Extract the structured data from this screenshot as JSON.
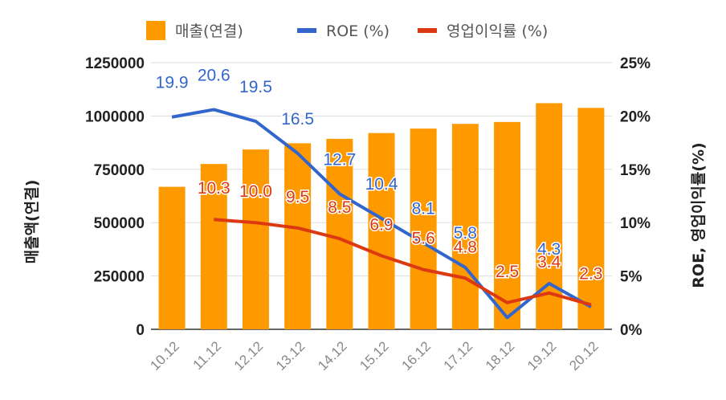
{
  "chart_data": {
    "type": "bar",
    "categories": [
      "10.12",
      "11.12",
      "12.12",
      "13.12",
      "14.12",
      "15.12",
      "16.12",
      "17.12",
      "18.12",
      "19.12",
      "20.12"
    ],
    "series": [
      {
        "name": "매출(연결)",
        "kind": "bar",
        "axis": "left",
        "color": "#ff9900",
        "values": [
          668000,
          775000,
          843000,
          872000,
          893000,
          920000,
          941000,
          963000,
          972000,
          1060000,
          1038000
        ]
      },
      {
        "name": "ROE (%)",
        "kind": "line",
        "axis": "right",
        "color": "#3366cc",
        "values": [
          19.9,
          20.6,
          19.5,
          16.5,
          12.7,
          10.4,
          8.1,
          5.8,
          1.1,
          4.3,
          2.1
        ],
        "labels": [
          "19.9",
          "20.6",
          "19.5",
          "16.5",
          "12.7",
          "10.4",
          "8.1",
          "5.8",
          "",
          "4.3",
          ""
        ]
      },
      {
        "name": "영업이익률 (%)",
        "kind": "line",
        "axis": "right",
        "color": "#dc3912",
        "values": [
          null,
          10.3,
          10.0,
          9.5,
          8.5,
          6.9,
          5.6,
          4.8,
          2.5,
          3.4,
          2.3
        ],
        "labels": [
          "",
          "10.3",
          "10.0",
          "9.5",
          "8.5",
          "6.9",
          "5.6",
          "4.8",
          "2.5",
          "3.4",
          "2.3"
        ]
      }
    ],
    "ylabel": "매출액(연결)",
    "y2label": "ROE, 영업이익률(%)",
    "ylim": [
      0,
      1250000
    ],
    "y2lim": [
      0,
      25
    ],
    "yticks": [
      "0",
      "250000",
      "500000",
      "750000",
      "1000000",
      "1250000"
    ],
    "y2ticks": [
      "0%",
      "5%",
      "10%",
      "15%",
      "20%",
      "25%"
    ],
    "legend_position": "top",
    "grid": true
  }
}
